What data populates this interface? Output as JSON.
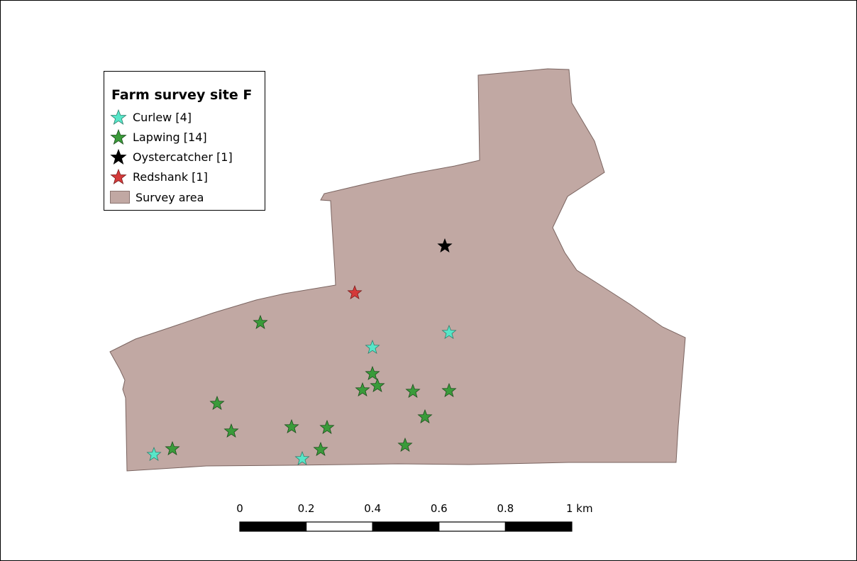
{
  "legend": {
    "title": "Farm survey site F",
    "items": [
      {
        "label": "Curlew [4]",
        "color": "#57e6c8",
        "icon": "star-icon"
      },
      {
        "label": "Lapwing [14]",
        "color": "#3a9b3a",
        "icon": "star-icon"
      },
      {
        "label": "Oystercatcher [1]",
        "color": "#000000",
        "icon": "star-icon"
      },
      {
        "label": "Redshank [1]",
        "color": "#d43a3a",
        "icon": "star-icon"
      },
      {
        "label": "Survey area",
        "color": "#c1a8a3",
        "icon": "polygon-swatch"
      }
    ]
  },
  "survey_area": {
    "fill": "#c1a8a3",
    "stroke": "#7a6460"
  },
  "observations": {
    "curlew": 4,
    "lapwing": 14,
    "oystercatcher": 1,
    "redshank": 1
  },
  "scale_bar": {
    "labels": [
      "0",
      "0.2",
      "0.4",
      "0.6",
      "0.8",
      "1 km"
    ],
    "segment_colors": [
      "#000000",
      "#ffffff",
      "#000000",
      "#ffffff",
      "#000000"
    ]
  }
}
